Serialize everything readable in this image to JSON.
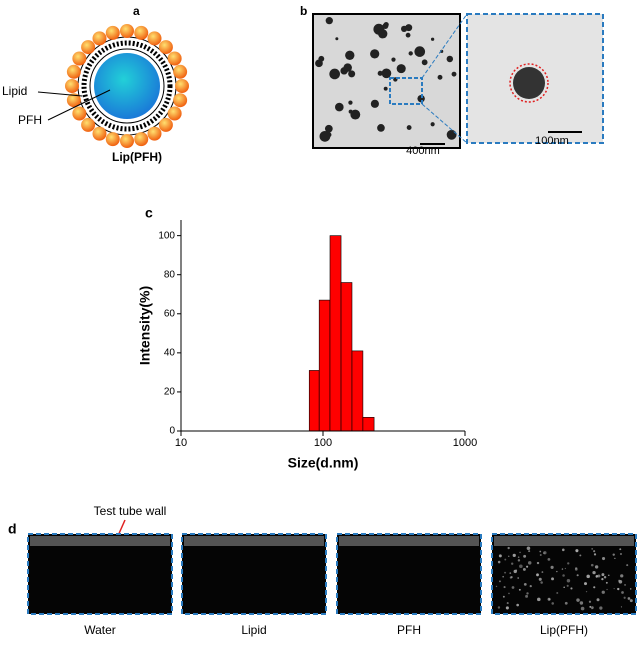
{
  "panel_a": {
    "label": "a",
    "lipid": "Lipid",
    "pfh": "PFH",
    "caption": "Lip(PFH)"
  },
  "panel_b": {
    "label": "b",
    "scale_left": "400nm",
    "scale_right": "100nm"
  },
  "chart_data": {
    "type": "histogram",
    "label": "c",
    "xlabel": "Size(d.nm)",
    "ylabel": "Intensity(%)",
    "log_x": true,
    "bins": [
      80,
      94,
      112,
      134,
      160,
      191,
      229
    ],
    "values": [
      31,
      67,
      100,
      76,
      41,
      7
    ],
    "color": "#ff0000",
    "xlim": [
      10,
      1000
    ],
    "xticks": [
      10,
      100,
      1000
    ],
    "ylim": [
      0,
      108
    ],
    "yticks": [
      0,
      20,
      40,
      60,
      80,
      100
    ]
  },
  "panel_d": {
    "label": "d",
    "annotation": "Test tube wall",
    "images": [
      "Water",
      "Lipid",
      "PFH",
      "Lip(PFH)"
    ]
  }
}
